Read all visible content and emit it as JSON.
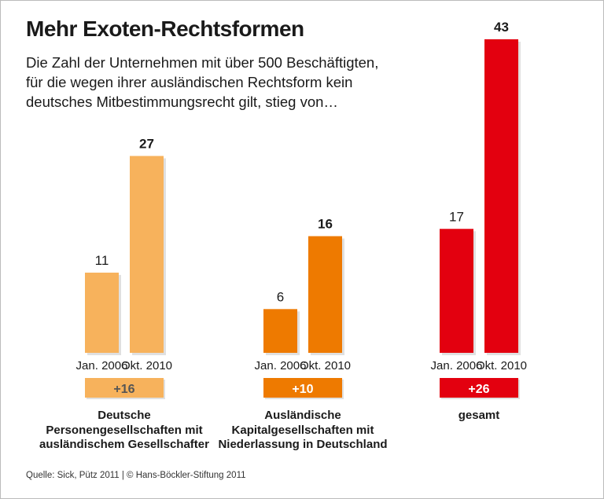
{
  "chart_data": {
    "type": "bar",
    "title": "Mehr Exoten-Rechtsformen",
    "subtitle": "Die Zahl der Unternehmen mit über 500 Beschäftigten, für die wegen ihrer ausländischen Rechtsform kein deutsches Mitbestimmungsrecht gilt, stieg von…",
    "categories": [
      "Jan. 2006",
      "Okt. 2010"
    ],
    "groups": [
      {
        "label": "Deutsche Personengesellschaften mit ausländischem Gesellschafter",
        "values": [
          11,
          27
        ],
        "delta": "+16",
        "color": "#F7B25C",
        "delta_text_color": "#555555"
      },
      {
        "label": "Ausländische Kapitalgesellschaften mit Niederlassung in Deutschland",
        "values": [
          6,
          16
        ],
        "delta": "+10",
        "color": "#EE7A00",
        "delta_text_color": "#ffffff"
      },
      {
        "label": "gesamt",
        "values": [
          17,
          43
        ],
        "delta": "+26",
        "color": "#E3000F",
        "delta_text_color": "#ffffff"
      }
    ],
    "ylim": [
      0,
      43
    ],
    "grid": false,
    "source": "Quelle: Sick, Pütz 2011 | © Hans-Böckler-Stiftung 2011"
  }
}
